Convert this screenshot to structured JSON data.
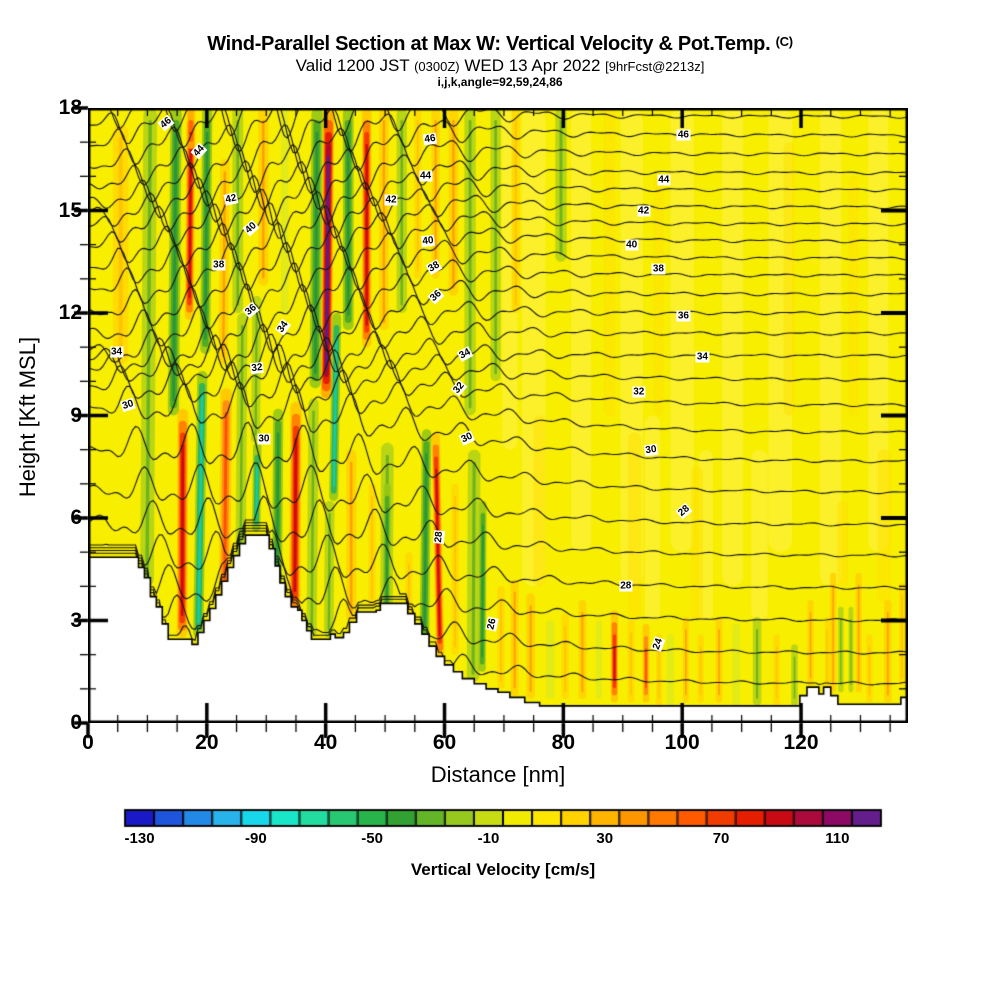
{
  "title": {
    "main": "Wind-Parallel Section at Max W: Vertical Velocity & Pot.Temp.",
    "superscript": "(C)",
    "sub_pre": "Valid 1200 JST ",
    "sub_small1": "(0300Z)",
    "sub_mid": " WED 13 Apr 2022 ",
    "sub_small2": "[9hrFcst@2213z]",
    "line3": "i,j,k,angle=92,59,24,86"
  },
  "axes": {
    "x": {
      "label": "Distance [nm]",
      "range": [
        0,
        138
      ],
      "major_ticks": [
        0,
        20,
        40,
        60,
        80,
        100,
        120
      ],
      "minor_step": 5
    },
    "y": {
      "label": "Height [Kft MSL]",
      "range": [
        0,
        18
      ],
      "major_ticks": [
        0,
        3,
        6,
        9,
        12,
        15,
        18
      ],
      "minor_step": 1
    }
  },
  "colorbar": {
    "label": "Vertical Velocity [cm/s]",
    "tick_values": [
      -130,
      -90,
      -50,
      -10,
      30,
      70,
      110
    ],
    "level_min": -135,
    "level_step": 10,
    "colors": [
      "#1919c8",
      "#1e55dc",
      "#2389e6",
      "#28b4eb",
      "#19d7eb",
      "#19e6c8",
      "#23dca0",
      "#28c873",
      "#28b44b",
      "#32a032",
      "#64b428",
      "#96c81e",
      "#c8dc14",
      "#f0eb00",
      "#ffe600",
      "#ffd200",
      "#ffb400",
      "#ff9600",
      "#ff7800",
      "#ff5a00",
      "#f03c00",
      "#e61e00",
      "#c80a14",
      "#aa0a3c",
      "#8c0a64",
      "#641e8c"
    ]
  },
  "chart_data": {
    "type": "filled_contour_cross_section",
    "fill_variable": "vertical velocity (cm/s)",
    "line_variable": "potential temperature (C)",
    "x_range_nm": [
      0,
      138
    ],
    "y_range_kft": [
      0,
      18
    ],
    "background_fill": "#f7ee00",
    "isentropes": {
      "levels_min": 23,
      "levels_max": 47,
      "interval": 1,
      "labeled_every": 2,
      "height_right_kft": [
        1.15,
        2.05,
        3.0,
        3.95,
        4.9,
        5.8,
        6.75,
        7.65,
        8.5,
        9.3,
        10.05,
        10.75,
        11.4,
        12.0,
        12.55,
        13.1,
        13.6,
        14.1,
        14.6,
        15.1,
        15.6,
        16.1,
        16.65,
        17.2,
        17.75
      ],
      "height_left_kft": [
        2.2,
        3.1,
        4.0,
        4.9,
        5.9,
        6.9,
        8.1,
        9.3,
        9.9,
        10.4,
        10.65,
        10.9,
        11.5,
        12.1,
        12.75,
        13.35,
        13.95,
        14.55,
        14.95,
        15.35,
        15.8,
        16.3,
        16.9,
        17.5,
        17.95
      ]
    },
    "contour_labels": [
      [
        "46",
        13.1,
        17.55,
        -40
      ],
      [
        "44",
        18.6,
        16.75,
        -48
      ],
      [
        "42",
        24.1,
        15.35,
        -12
      ],
      [
        "40",
        27.5,
        14.5,
        -42
      ],
      [
        "38",
        22.0,
        13.4,
        0
      ],
      [
        "36",
        27.4,
        12.1,
        -40
      ],
      [
        "46",
        57.6,
        17.1,
        -8
      ],
      [
        "44",
        56.8,
        16.0,
        0
      ],
      [
        "42",
        51.0,
        15.3,
        0
      ],
      [
        "40",
        57.3,
        14.1,
        -6
      ],
      [
        "38",
        58.2,
        13.35,
        -30
      ],
      [
        "36",
        58.5,
        12.5,
        -42
      ],
      [
        "46",
        100.2,
        17.2,
        0
      ],
      [
        "44",
        96.9,
        15.9,
        0
      ],
      [
        "42",
        93.5,
        15.0,
        0
      ],
      [
        "40",
        91.5,
        14.0,
        0
      ],
      [
        "38",
        96.0,
        13.3,
        0
      ],
      [
        "36",
        100.2,
        11.9,
        0
      ],
      [
        "34",
        103.4,
        10.7,
        0
      ],
      [
        "34",
        4.8,
        10.85,
        0
      ],
      [
        "30",
        6.8,
        9.3,
        -18
      ],
      [
        "34",
        32.9,
        11.6,
        -55
      ],
      [
        "32",
        28.5,
        10.4,
        -6
      ],
      [
        "30",
        29.6,
        8.3,
        0
      ],
      [
        "34",
        63.4,
        10.8,
        -28
      ],
      [
        "32",
        62.4,
        9.8,
        -50
      ],
      [
        "30",
        63.7,
        8.35,
        -25
      ],
      [
        "32",
        92.7,
        9.7,
        0
      ],
      [
        "30",
        94.8,
        8.0,
        -8
      ],
      [
        "28",
        59.0,
        5.45,
        -85
      ],
      [
        "28",
        100.3,
        6.2,
        -40
      ],
      [
        "28",
        90.5,
        4.0,
        0
      ],
      [
        "26",
        68.0,
        2.9,
        -78
      ],
      [
        "24",
        96.0,
        2.3,
        -70
      ]
    ],
    "terrain_profile_nm_kft": [
      [
        0,
        4.85
      ],
      [
        7.5,
        4.85
      ],
      [
        8.5,
        4.55
      ],
      [
        9.5,
        4.25
      ],
      [
        10.5,
        3.7
      ],
      [
        11.5,
        3.4
      ],
      [
        12.5,
        2.9
      ],
      [
        13.5,
        2.45
      ],
      [
        17.5,
        2.3
      ],
      [
        18.5,
        2.65
      ],
      [
        19.5,
        3.0
      ],
      [
        20.5,
        3.35
      ],
      [
        21.5,
        3.75
      ],
      [
        22.5,
        4.15
      ],
      [
        23.5,
        4.55
      ],
      [
        24.5,
        4.9
      ],
      [
        25.5,
        5.25
      ],
      [
        26.5,
        5.5
      ],
      [
        29.5,
        5.5
      ],
      [
        30.5,
        5.1
      ],
      [
        31.5,
        4.6
      ],
      [
        32.3,
        4.1
      ],
      [
        33.2,
        3.7
      ],
      [
        34.2,
        3.4
      ],
      [
        35.3,
        3.3
      ],
      [
        36,
        3.0
      ],
      [
        36.8,
        2.7
      ],
      [
        37.6,
        2.45
      ],
      [
        40,
        2.45
      ],
      [
        40.8,
        2.6
      ],
      [
        41.6,
        2.5
      ],
      [
        43,
        2.65
      ],
      [
        44,
        2.95
      ],
      [
        45.2,
        3.25
      ],
      [
        48.5,
        3.3
      ],
      [
        49.2,
        3.5
      ],
      [
        52.8,
        3.5
      ],
      [
        53.8,
        3.2
      ],
      [
        55,
        2.9
      ],
      [
        56.2,
        2.6
      ],
      [
        57.4,
        2.25
      ],
      [
        58.6,
        1.95
      ],
      [
        60,
        1.7
      ],
      [
        61.5,
        1.5
      ],
      [
        63,
        1.3
      ],
      [
        65,
        1.15
      ],
      [
        67,
        1.0
      ],
      [
        69,
        0.9
      ],
      [
        71,
        0.75
      ],
      [
        73.5,
        0.6
      ],
      [
        76,
        0.5
      ],
      [
        118.5,
        0.5
      ],
      [
        119.8,
        0.8
      ],
      [
        121,
        1.05
      ],
      [
        122.3,
        1.05
      ],
      [
        123,
        0.85
      ],
      [
        123.8,
        1.05
      ],
      [
        125,
        0.8
      ],
      [
        126.2,
        0.55
      ],
      [
        135.5,
        0.55
      ],
      [
        136.8,
        0.75
      ],
      [
        138,
        0.75
      ]
    ],
    "band_format": "[center_nm, bottom_kft, top_kft, halfwidth_nm, tilt_nm_per_kft, palette]",
    "palettes": {
      "paleY": {
        "colors": [
          "#fff24d"
        ],
        "alpha": 0.55
      },
      "gold": {
        "colors": [
          "#ffdf00"
        ],
        "alpha": 0.5
      },
      "warm1": {
        "colors": [
          "#ffd900",
          "#ffc300"
        ]
      },
      "warm2": {
        "colors": [
          "#ffd200",
          "#ff9e00"
        ]
      },
      "warm3": {
        "colors": [
          "#ffc800",
          "#ff8c14",
          "#ff5000"
        ]
      },
      "warm4": {
        "colors": [
          "#ffc800",
          "#ff8200",
          "#f53c00",
          "#cd0a14"
        ]
      },
      "warm5": {
        "colors": [
          "#ffaa00",
          "#ff6400",
          "#e61e00",
          "#aa0a32",
          "#5a1e8c"
        ]
      },
      "cool1": {
        "colors": [
          "#dce81e"
        ],
        "alpha": 0.8
      },
      "cool2": {
        "colors": [
          "#b4d216",
          "#6eb41e"
        ]
      },
      "cool3": {
        "colors": [
          "#96c816",
          "#50aa23",
          "#28963c"
        ]
      },
      "teal": {
        "colors": [
          "#96c816",
          "#32b45a",
          "#14cdaa"
        ]
      }
    },
    "velocity_bands": [
      [
        5.5,
        10.5,
        17.5,
        1.3,
        0,
        "warm1"
      ],
      [
        10.2,
        4.0,
        18,
        1.15,
        0.04,
        "cool2"
      ],
      [
        14.6,
        9.0,
        18,
        0.95,
        0.05,
        "cool3"
      ],
      [
        17.2,
        11.8,
        18,
        0.75,
        0.05,
        "warm4"
      ],
      [
        17.3,
        16.8,
        18,
        0.45,
        0,
        "warm5"
      ],
      [
        19.9,
        10.8,
        18,
        0.85,
        0.05,
        "cool3"
      ],
      [
        22.9,
        10.5,
        16.5,
        0.8,
        0.05,
        "warm2"
      ],
      [
        25.2,
        12,
        18,
        0.9,
        0,
        "cool2"
      ],
      [
        29.5,
        12.8,
        18,
        0.85,
        0,
        "warm2"
      ],
      [
        33.1,
        12,
        18,
        0.6,
        0,
        "cool1"
      ],
      [
        38.4,
        9.8,
        18,
        0.95,
        0.04,
        "cool3"
      ],
      [
        40.3,
        9.5,
        18,
        0.9,
        0.05,
        "warm5"
      ],
      [
        43.8,
        11.5,
        18,
        0.9,
        0,
        "cool3"
      ],
      [
        46.9,
        11,
        18,
        0.8,
        0,
        "warm4"
      ],
      [
        49.8,
        11.5,
        18,
        0.8,
        0,
        "warm2"
      ],
      [
        52.8,
        12,
        18,
        0.85,
        0,
        "cool2"
      ],
      [
        55.5,
        13,
        18,
        0.6,
        0,
        "warm1"
      ],
      [
        58.5,
        13,
        18,
        0.7,
        0,
        "warm2"
      ],
      [
        61.5,
        12.5,
        18,
        0.8,
        0,
        "warm2"
      ],
      [
        64.3,
        9,
        18,
        0.95,
        0,
        "cool2"
      ],
      [
        68.6,
        10,
        18,
        0.85,
        0,
        "cool2"
      ],
      [
        72,
        12,
        18,
        0.7,
        0,
        "warm1"
      ],
      [
        79.6,
        13.5,
        18,
        0.95,
        0,
        "cool2"
      ],
      [
        15.9,
        2.5,
        9.2,
        0.9,
        0.02,
        "warm4"
      ],
      [
        18.9,
        2.5,
        10.3,
        0.85,
        0.09,
        "teal"
      ],
      [
        23.1,
        2.6,
        9.8,
        0.95,
        0.05,
        "warm3"
      ],
      [
        25.8,
        2.8,
        12,
        0.85,
        0.04,
        "cool2"
      ],
      [
        28.4,
        5.6,
        8.2,
        0.7,
        0.07,
        "teal"
      ],
      [
        28.3,
        8.2,
        12.5,
        0.75,
        0.05,
        "cool2"
      ],
      [
        31.9,
        3.2,
        9.2,
        0.85,
        0.04,
        "cool3"
      ],
      [
        34.9,
        3.2,
        9.4,
        0.95,
        0.04,
        "warm4"
      ],
      [
        37.8,
        2.5,
        9.5,
        0.85,
        0.05,
        "cool2"
      ],
      [
        41.6,
        6.5,
        12,
        0.75,
        0.1,
        "teal"
      ],
      [
        40.6,
        2.5,
        6.5,
        0.8,
        0.04,
        "cool2"
      ],
      [
        44.3,
        3.0,
        8.0,
        0.85,
        0,
        "warm2"
      ],
      [
        47.8,
        3.4,
        7.0,
        0.6,
        0,
        "warm1"
      ],
      [
        50.3,
        2.3,
        8.2,
        1.05,
        0.03,
        "cool2"
      ],
      [
        50.3,
        3.0,
        7.0,
        0.6,
        0.03,
        "cool3"
      ],
      [
        54,
        2.0,
        5.0,
        0.6,
        0,
        "warm1"
      ],
      [
        56.8,
        2.4,
        8.6,
        0.8,
        0.06,
        "cool3"
      ],
      [
        58.9,
        1.9,
        8.5,
        0.7,
        -0.12,
        "warm4"
      ],
      [
        61.8,
        2.0,
        7.0,
        0.6,
        0,
        "warm1"
      ],
      [
        64.9,
        1.2,
        8.0,
        1.05,
        0.03,
        "cool2"
      ],
      [
        66.4,
        1.5,
        6.5,
        0.6,
        0.03,
        "cool3"
      ],
      [
        69.5,
        1.0,
        4.0,
        0.6,
        0,
        "warm1"
      ],
      [
        71.8,
        0.8,
        4.2,
        0.65,
        0,
        "warm2"
      ],
      [
        74.5,
        0.7,
        3.8,
        0.7,
        0,
        "warm2"
      ],
      [
        77.8,
        0.7,
        3.0,
        0.7,
        0,
        "cool1"
      ],
      [
        80.3,
        0.7,
        3.2,
        0.6,
        0,
        "warm1"
      ],
      [
        83.2,
        0.7,
        3.6,
        0.65,
        0,
        "warm2"
      ],
      [
        86,
        0.7,
        3.0,
        0.5,
        0,
        "cool1"
      ],
      [
        88.6,
        0.6,
        3.3,
        0.6,
        0,
        "warm4"
      ],
      [
        91.4,
        0.6,
        3.0,
        0.55,
        0,
        "warm1"
      ],
      [
        93.9,
        0.6,
        2.9,
        0.55,
        0,
        "warm3"
      ],
      [
        96.1,
        0.5,
        2.6,
        0.5,
        0,
        "warm1"
      ],
      [
        98,
        0.5,
        2.6,
        0.55,
        0,
        "cool1"
      ],
      [
        100.6,
        0.6,
        3.1,
        0.5,
        0,
        "warm2"
      ],
      [
        103.1,
        0.6,
        2.6,
        0.5,
        0,
        "warm1"
      ],
      [
        106.2,
        0.6,
        3.1,
        0.55,
        0,
        "warm2"
      ],
      [
        109.1,
        0.5,
        2.9,
        0.6,
        0,
        "cool1"
      ],
      [
        112.6,
        0.5,
        3.1,
        0.7,
        0,
        "cool2"
      ],
      [
        115.9,
        0.5,
        2.6,
        0.5,
        0,
        "warm1"
      ],
      [
        118.9,
        0.5,
        2.3,
        0.55,
        0,
        "cool2"
      ],
      [
        121.6,
        1.1,
        3.6,
        0.5,
        0,
        "warm2"
      ],
      [
        124.4,
        0.9,
        3.1,
        0.4,
        0,
        "warm1"
      ],
      [
        125.4,
        0.9,
        4.4,
        0.5,
        0,
        "warm2"
      ],
      [
        126.7,
        0.9,
        3.4,
        0.45,
        0,
        "cool2"
      ],
      [
        128.4,
        0.9,
        3.4,
        0.4,
        0,
        "cool2"
      ],
      [
        129.7,
        0.9,
        4.4,
        0.5,
        0,
        "warm2"
      ],
      [
        131.5,
        0.6,
        2.6,
        0.5,
        0,
        "warm1"
      ],
      [
        134.6,
        0.6,
        3.6,
        0.6,
        0,
        "warm2"
      ],
      [
        137,
        1.1,
        4.1,
        0.5,
        0,
        "warm1"
      ]
    ],
    "texture_pale": [
      [
        75,
        4,
        18,
        2
      ],
      [
        83,
        5,
        18,
        1.7
      ],
      [
        91.5,
        4,
        18,
        1.9
      ],
      [
        100,
        5,
        18,
        2
      ],
      [
        108.5,
        4,
        18,
        1.8
      ],
      [
        116.5,
        5,
        18,
        2
      ],
      [
        125,
        4,
        18,
        1.8
      ],
      [
        133,
        5,
        18,
        1.7
      ],
      [
        71,
        8,
        18,
        1.3
      ],
      [
        95,
        3,
        9,
        1.3
      ],
      [
        104,
        3,
        8,
        1.2
      ],
      [
        113,
        3,
        8,
        1.4
      ]
    ],
    "texture_gold": [
      [
        87.8,
        9,
        18,
        0.9
      ],
      [
        96,
        9,
        16,
        0.8
      ],
      [
        118,
        9,
        17,
        0.9
      ],
      [
        128.8,
        9,
        16,
        0.8
      ],
      [
        92,
        3,
        8.5,
        1.1
      ],
      [
        102.5,
        3,
        7.5,
        1
      ],
      [
        127,
        4,
        6.5,
        0.9
      ],
      [
        134,
        3.5,
        8,
        1.1
      ],
      [
        76,
        4,
        9,
        1
      ]
    ]
  }
}
